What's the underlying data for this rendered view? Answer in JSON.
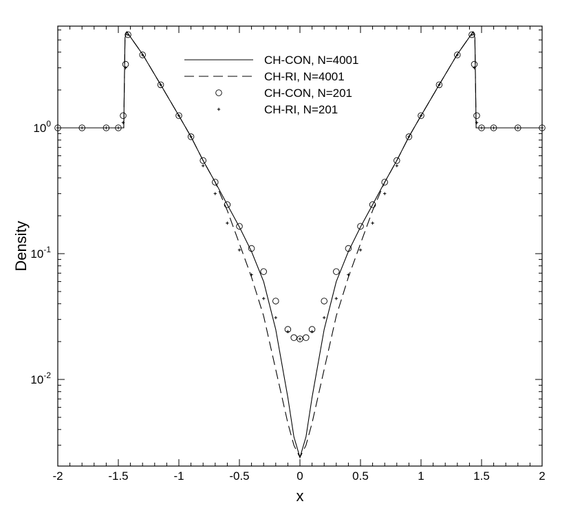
{
  "chart_data": {
    "type": "line",
    "title": "",
    "xlabel": "x",
    "ylabel": "Density",
    "xlim": [
      -2,
      2
    ],
    "ylim": [
      0.0022,
      6.2
    ],
    "y_scale": "log",
    "grid": false,
    "legend_position": "top-center",
    "x_ticks": [
      "-2",
      "-1.5",
      "-1",
      "-0.5",
      "0",
      "0.5",
      "1",
      "1.5",
      "2"
    ],
    "y_ticks": [
      {
        "base": "10",
        "exp": "0",
        "value": 1
      },
      {
        "base": "10",
        "exp": "-1",
        "value": 0.1
      },
      {
        "base": "10",
        "exp": "-2",
        "value": 0.01
      }
    ],
    "series": [
      {
        "name": "CH-CON, N=4001",
        "style": "solid",
        "points": [
          [
            -2,
            1
          ],
          [
            -1.455,
            1
          ],
          [
            -1.445,
            5.2
          ],
          [
            -1.43,
            5.8
          ],
          [
            -1.3,
            3.85
          ],
          [
            -1.15,
            2.2
          ],
          [
            -1.0,
            1.25
          ],
          [
            -0.9,
            0.85
          ],
          [
            -0.8,
            0.55
          ],
          [
            -0.7,
            0.37
          ],
          [
            -0.6,
            0.245
          ],
          [
            -0.5,
            0.163
          ],
          [
            -0.4,
            0.104
          ],
          [
            -0.3,
            0.06
          ],
          [
            -0.2,
            0.025
          ],
          [
            -0.1,
            0.0072
          ],
          [
            -0.05,
            0.0035
          ],
          [
            0,
            0.0024
          ],
          [
            0.05,
            0.0035
          ],
          [
            0.1,
            0.0072
          ],
          [
            0.2,
            0.025
          ],
          [
            0.3,
            0.06
          ],
          [
            0.4,
            0.104
          ],
          [
            0.5,
            0.163
          ],
          [
            0.6,
            0.245
          ],
          [
            0.7,
            0.37
          ],
          [
            0.8,
            0.55
          ],
          [
            0.9,
            0.85
          ],
          [
            1.0,
            1.25
          ],
          [
            1.15,
            2.2
          ],
          [
            1.3,
            3.85
          ],
          [
            1.43,
            5.8
          ],
          [
            1.445,
            5.2
          ],
          [
            1.455,
            1
          ],
          [
            2,
            1
          ]
        ]
      },
      {
        "name": "CH-RI, N=4001",
        "style": "dashed",
        "points": [
          [
            -2,
            1
          ],
          [
            -1.455,
            1
          ],
          [
            -1.445,
            5.2
          ],
          [
            -1.43,
            5.8
          ],
          [
            -1.3,
            3.85
          ],
          [
            -1.15,
            2.2
          ],
          [
            -1.0,
            1.25
          ],
          [
            -0.9,
            0.85
          ],
          [
            -0.8,
            0.55
          ],
          [
            -0.7,
            0.37
          ],
          [
            -0.6,
            0.22
          ],
          [
            -0.5,
            0.12
          ],
          [
            -0.4,
            0.065
          ],
          [
            -0.3,
            0.032
          ],
          [
            -0.2,
            0.012
          ],
          [
            -0.1,
            0.0045
          ],
          [
            -0.05,
            0.003
          ],
          [
            0,
            0.0024
          ],
          [
            0.05,
            0.003
          ],
          [
            0.1,
            0.0045
          ],
          [
            0.2,
            0.012
          ],
          [
            0.3,
            0.032
          ],
          [
            0.4,
            0.065
          ],
          [
            0.5,
            0.12
          ],
          [
            0.6,
            0.22
          ],
          [
            0.7,
            0.37
          ],
          [
            0.8,
            0.55
          ],
          [
            0.9,
            0.85
          ],
          [
            1.0,
            1.25
          ],
          [
            1.15,
            2.2
          ],
          [
            1.3,
            3.85
          ],
          [
            1.43,
            5.8
          ],
          [
            1.445,
            5.2
          ],
          [
            1.455,
            1
          ],
          [
            2,
            1
          ]
        ]
      },
      {
        "name": "CH-CON, N=201",
        "style": "circles",
        "points": [
          [
            -2,
            1
          ],
          [
            -1.8,
            1
          ],
          [
            -1.6,
            1
          ],
          [
            -1.5,
            1
          ],
          [
            -1.46,
            1.25
          ],
          [
            -1.44,
            3.2
          ],
          [
            -1.42,
            5.5
          ],
          [
            -1.3,
            3.8
          ],
          [
            -1.15,
            2.2
          ],
          [
            -1.0,
            1.25
          ],
          [
            -0.9,
            0.85
          ],
          [
            -0.8,
            0.55
          ],
          [
            -0.7,
            0.37
          ],
          [
            -0.6,
            0.245
          ],
          [
            -0.5,
            0.165
          ],
          [
            -0.4,
            0.11
          ],
          [
            -0.3,
            0.072
          ],
          [
            -0.2,
            0.042
          ],
          [
            -0.1,
            0.025
          ],
          [
            -0.05,
            0.0215
          ],
          [
            0,
            0.021
          ],
          [
            0.05,
            0.0215
          ],
          [
            0.1,
            0.025
          ],
          [
            0.2,
            0.042
          ],
          [
            0.3,
            0.072
          ],
          [
            0.4,
            0.11
          ],
          [
            0.5,
            0.165
          ],
          [
            0.6,
            0.245
          ],
          [
            0.7,
            0.37
          ],
          [
            0.8,
            0.55
          ],
          [
            0.9,
            0.85
          ],
          [
            1.0,
            1.25
          ],
          [
            1.15,
            2.2
          ],
          [
            1.3,
            3.8
          ],
          [
            1.42,
            5.5
          ],
          [
            1.44,
            3.2
          ],
          [
            1.46,
            1.25
          ],
          [
            1.5,
            1
          ],
          [
            1.6,
            1
          ],
          [
            1.8,
            1
          ],
          [
            2,
            1
          ]
        ]
      },
      {
        "name": "CH-RI, N=201",
        "style": "plus",
        "points": [
          [
            -2,
            1
          ],
          [
            -1.8,
            1
          ],
          [
            -1.6,
            1
          ],
          [
            -1.5,
            1
          ],
          [
            -1.46,
            1.1
          ],
          [
            -1.44,
            3.0
          ],
          [
            -1.42,
            5.5
          ],
          [
            -1.3,
            3.8
          ],
          [
            -1.15,
            2.2
          ],
          [
            -1.0,
            1.25
          ],
          [
            -0.9,
            0.85
          ],
          [
            -0.8,
            0.5
          ],
          [
            -0.7,
            0.3
          ],
          [
            -0.6,
            0.175
          ],
          [
            -0.5,
            0.107
          ],
          [
            -0.4,
            0.068
          ],
          [
            -0.3,
            0.044
          ],
          [
            -0.2,
            0.031
          ],
          [
            -0.1,
            0.024
          ],
          [
            0,
            0.021
          ],
          [
            0.1,
            0.024
          ],
          [
            0.2,
            0.031
          ],
          [
            0.3,
            0.044
          ],
          [
            0.4,
            0.068
          ],
          [
            0.5,
            0.107
          ],
          [
            0.6,
            0.175
          ],
          [
            0.7,
            0.3
          ],
          [
            0.8,
            0.5
          ],
          [
            0.9,
            0.85
          ],
          [
            1.0,
            1.25
          ],
          [
            1.15,
            2.2
          ],
          [
            1.3,
            3.8
          ],
          [
            1.42,
            5.5
          ],
          [
            1.44,
            3.0
          ],
          [
            1.46,
            1.1
          ],
          [
            1.5,
            1
          ],
          [
            1.6,
            1
          ],
          [
            1.8,
            1
          ],
          [
            2,
            1
          ]
        ]
      }
    ]
  }
}
